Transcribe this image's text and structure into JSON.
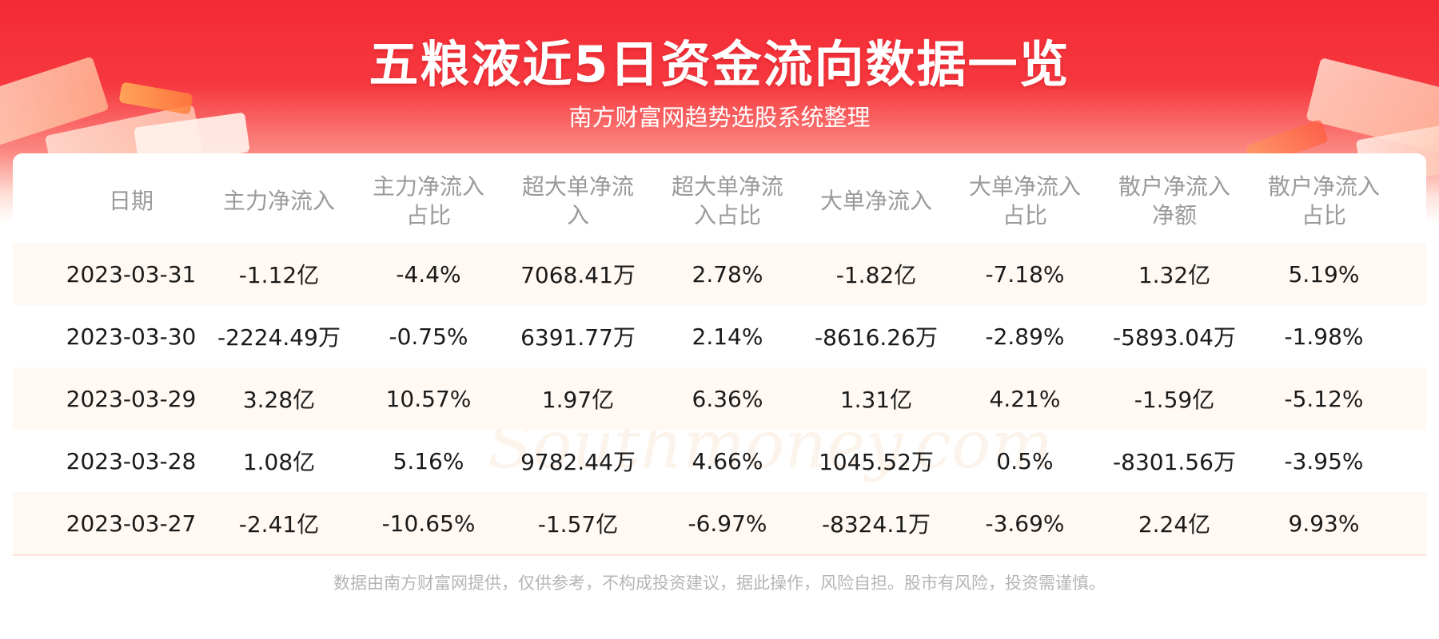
{
  "header": {
    "title": "五粮液近5日资金流向数据一览",
    "subtitle": "南方财富网趋势选股系统整理"
  },
  "watermark": {
    "cn": "南方财富网",
    "en": "Southmoney.com"
  },
  "table": {
    "headers": [
      [
        "日期"
      ],
      [
        "主力净流入"
      ],
      [
        "主力净流入",
        "占比"
      ],
      [
        "超大单净流",
        "入"
      ],
      [
        "超大单净流",
        "入占比"
      ],
      [
        "大单净流入"
      ],
      [
        "大单净流入",
        "占比"
      ],
      [
        "散户净流入",
        "净额"
      ],
      [
        "散户净流入",
        "占比"
      ]
    ],
    "rows": [
      [
        "2023-03-31",
        "-1.12亿",
        "-4.4%",
        "7068.41万",
        "2.78%",
        "-1.82亿",
        "-7.18%",
        "1.32亿",
        "5.19%"
      ],
      [
        "2023-03-30",
        "-2224.49万",
        "-0.75%",
        "6391.77万",
        "2.14%",
        "-8616.26万",
        "-2.89%",
        "-5893.04万",
        "-1.98%"
      ],
      [
        "2023-03-29",
        "3.28亿",
        "10.57%",
        "1.97亿",
        "6.36%",
        "1.31亿",
        "4.21%",
        "-1.59亿",
        "-5.12%"
      ],
      [
        "2023-03-28",
        "1.08亿",
        "5.16%",
        "9782.44万",
        "4.66%",
        "1045.52万",
        "0.5%",
        "-8301.56万",
        "-3.95%"
      ],
      [
        "2023-03-27",
        "-2.41亿",
        "-10.65%",
        "-1.57亿",
        "-6.97%",
        "-8324.1万",
        "-3.69%",
        "2.24亿",
        "9.93%"
      ]
    ]
  },
  "footer": {
    "disclaimer": "数据由南方财富网提供，仅供参考，不构成投资建议，据此操作，风险自担。股市有风险，投资需谨慎。"
  }
}
